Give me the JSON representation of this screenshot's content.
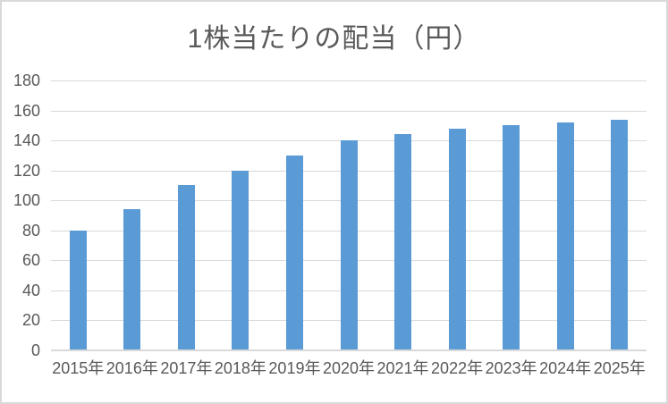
{
  "chart": {
    "title": "1株当たりの配当（円）"
  },
  "chart_data": {
    "type": "bar",
    "title": "1株当たりの配当（円）",
    "categories": [
      "2015年",
      "2016年",
      "2017年",
      "2018年",
      "2019年",
      "2020年",
      "2021年",
      "2022年",
      "2023年",
      "2024年",
      "2025年"
    ],
    "values": [
      80,
      94,
      110,
      120,
      130,
      140,
      144,
      148,
      150,
      152,
      154
    ],
    "xlabel": "",
    "ylabel": "",
    "ylim": [
      0,
      180
    ],
    "yticks": [
      0,
      20,
      40,
      60,
      80,
      100,
      120,
      140,
      160,
      180
    ],
    "grid": "horizontal",
    "legend": "none"
  },
  "colors": {
    "bar": "#5B9BD5",
    "title_text": "#595959",
    "tick_text": "#595959",
    "gridline": "#D9D9D9",
    "axis_line": "#D9D9D9",
    "border": "#D9D9D9",
    "background": "#FFFFFF"
  }
}
